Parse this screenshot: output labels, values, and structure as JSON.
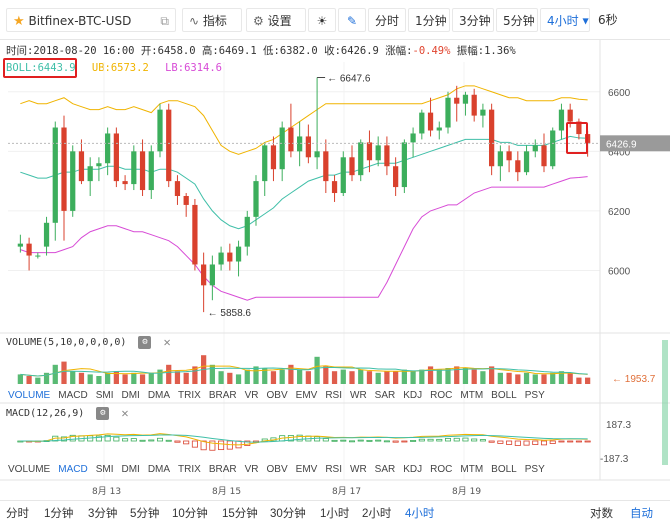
{
  "toolbar": {
    "pair": "Bitfinex-BTC-USD",
    "indicator_label": "指标",
    "settings_label": "设置",
    "intervals": [
      "分时",
      "1分钟",
      "3分钟",
      "5分钟"
    ],
    "active_interval": "4小时",
    "countdown": "6秒"
  },
  "info": {
    "time_label": "时间:",
    "time": "2018-08-20 16:00",
    "open_label": "开:",
    "open": "6458.0",
    "high_label": "高:",
    "high": "6469.1",
    "low_label": "低:",
    "low": "6382.0",
    "close_label": "收:",
    "close": "6426.9",
    "change_label": "涨幅:",
    "change": "-0.49%",
    "amp_label": "振幅:",
    "amp": "1.36%"
  },
  "boll": {
    "mid": "BOLL:6443.9",
    "ub": "UB:6573.2",
    "lb": "LB:6314.6"
  },
  "price_axis": [
    "6600",
    "6400",
    "6200",
    "6000"
  ],
  "last_price": "6426.9",
  "annotations": {
    "high_mark": "6647.6",
    "low_mark": "5858.6"
  },
  "volume": {
    "title": "VOLUME(5,10,0,0,0,0)",
    "last_value": "1953.7"
  },
  "macd": {
    "title": "MACD(12,26,9)",
    "top": "187.3",
    "bottom": "-187.3"
  },
  "tabs_row1": [
    "VOLUME",
    "MACD",
    "SMI",
    "DMI",
    "DMA",
    "TRIX",
    "BRAR",
    "VR",
    "OBV",
    "EMV",
    "RSI",
    "WR",
    "SAR",
    "KDJ",
    "ROC",
    "MTM",
    "BOLL",
    "PSY"
  ],
  "tabs_row1_active": "VOLUME",
  "tabs_row2": [
    "VOLUME",
    "MACD",
    "SMI",
    "DMI",
    "DMA",
    "TRIX",
    "BRAR",
    "VR",
    "OBV",
    "EMV",
    "RSI",
    "WR",
    "SAR",
    "KDJ",
    "ROC",
    "MTM",
    "BOLL",
    "PSY"
  ],
  "tabs_row2_active": "MACD",
  "date_ticks": [
    "8月 13",
    "8月 15",
    "8月 17",
    "8月 19"
  ],
  "bottom": {
    "intervals": [
      "分时",
      "1分钟",
      "3分钟",
      "5分钟",
      "10分钟",
      "15分钟",
      "30分钟",
      "1小时",
      "2小时",
      "4小时"
    ],
    "active": "4小时",
    "log_label": "对数",
    "auto_label": "自动"
  },
  "colors": {
    "up": "#3cae5c",
    "down": "#d9412d",
    "accent": "#1e6fd9",
    "boll_mid": "#3fbfa8",
    "boll_ub": "#f0b400",
    "boll_lb": "#d74bd6"
  },
  "chart_data": {
    "type": "candlestick",
    "price_axis": [
      6000,
      6200,
      6400,
      6600
    ],
    "ylim": [
      5800,
      6700
    ],
    "candles": [
      [
        6080,
        6120,
        6060,
        6090
      ],
      [
        6090,
        6110,
        6000,
        6050
      ],
      [
        6050,
        6060,
        6040,
        6050
      ],
      [
        6080,
        6180,
        6050,
        6160
      ],
      [
        6160,
        6500,
        6100,
        6480
      ],
      [
        6480,
        6520,
        6100,
        6200
      ],
      [
        6200,
        6420,
        6180,
        6400
      ],
      [
        6400,
        6440,
        6290,
        6300
      ],
      [
        6300,
        6380,
        6250,
        6350
      ],
      [
        6350,
        6380,
        6300,
        6360
      ],
      [
        6360,
        6480,
        6320,
        6460
      ],
      [
        6460,
        6480,
        6280,
        6300
      ],
      [
        6300,
        6320,
        6270,
        6290
      ],
      [
        6290,
        6420,
        6270,
        6400
      ],
      [
        6400,
        6440,
        6250,
        6270
      ],
      [
        6270,
        6420,
        6240,
        6400
      ],
      [
        6400,
        6560,
        6380,
        6540
      ],
      [
        6540,
        6560,
        6280,
        6300
      ],
      [
        6300,
        6320,
        6220,
        6250
      ],
      [
        6250,
        6260,
        6180,
        6220
      ],
      [
        6220,
        6240,
        6000,
        6020
      ],
      [
        6020,
        6060,
        5860,
        5950
      ],
      [
        5950,
        6050,
        5900,
        6020
      ],
      [
        6020,
        6080,
        6000,
        6060
      ],
      [
        6060,
        6090,
        6000,
        6030
      ],
      [
        6030,
        6100,
        5980,
        6080
      ],
      [
        6080,
        6200,
        6050,
        6180
      ],
      [
        6180,
        6320,
        6150,
        6300
      ],
      [
        6300,
        6430,
        6250,
        6420
      ],
      [
        6420,
        6450,
        6300,
        6340
      ],
      [
        6340,
        6500,
        6300,
        6480
      ],
      [
        6480,
        6560,
        6380,
        6400
      ],
      [
        6400,
        6500,
        6350,
        6450
      ],
      [
        6450,
        6490,
        6360,
        6380
      ],
      [
        6380,
        6648,
        6340,
        6400
      ],
      [
        6400,
        6440,
        6260,
        6300
      ],
      [
        6300,
        6320,
        6230,
        6260
      ],
      [
        6260,
        6400,
        6250,
        6380
      ],
      [
        6380,
        6420,
        6300,
        6320
      ],
      [
        6320,
        6440,
        6300,
        6430
      ],
      [
        6430,
        6470,
        6330,
        6370
      ],
      [
        6370,
        6450,
        6350,
        6420
      ],
      [
        6420,
        6450,
        6320,
        6350
      ],
      [
        6350,
        6380,
        6250,
        6280
      ],
      [
        6280,
        6440,
        6260,
        6430
      ],
      [
        6430,
        6480,
        6380,
        6460
      ],
      [
        6460,
        6540,
        6440,
        6530
      ],
      [
        6530,
        6580,
        6450,
        6470
      ],
      [
        6470,
        6500,
        6440,
        6480
      ],
      [
        6480,
        6600,
        6460,
        6580
      ],
      [
        6580,
        6620,
        6500,
        6560
      ],
      [
        6560,
        6600,
        6520,
        6590
      ],
      [
        6590,
        6610,
        6500,
        6520
      ],
      [
        6520,
        6560,
        6480,
        6540
      ],
      [
        6540,
        6560,
        6320,
        6350
      ],
      [
        6350,
        6420,
        6300,
        6400
      ],
      [
        6400,
        6420,
        6330,
        6370
      ],
      [
        6370,
        6400,
        6300,
        6330
      ],
      [
        6330,
        6420,
        6320,
        6400
      ],
      [
        6400,
        6440,
        6380,
        6420
      ],
      [
        6420,
        6460,
        6330,
        6350
      ],
      [
        6350,
        6480,
        6340,
        6470
      ],
      [
        6470,
        6560,
        6440,
        6540
      ],
      [
        6540,
        6560,
        6480,
        6500
      ],
      [
        6500,
        6510,
        6440,
        6458
      ],
      [
        6458,
        6469,
        6382,
        6427
      ]
    ],
    "boll_ub": [
      6560,
      6570,
      6560,
      6560,
      6570,
      6580,
      6560,
      6550,
      6540,
      6540,
      6550,
      6540,
      6540,
      6550,
      6540,
      6530,
      6560,
      6570,
      6570,
      6560,
      6550,
      6520,
      6470,
      6420,
      6400,
      6390,
      6400,
      6410,
      6430,
      6440,
      6460,
      6480,
      6500,
      6520,
      6540,
      6560,
      6560,
      6560,
      6560,
      6560,
      6560,
      6560,
      6560,
      6560,
      6560,
      6560,
      6560,
      6570,
      6580,
      6590,
      6610,
      6620,
      6620,
      6610,
      6600,
      6590,
      6580,
      6580,
      6570,
      6570,
      6570,
      6570,
      6580,
      6580,
      6575,
      6573
    ],
    "boll_mid": [
      6330,
      6320,
      6310,
      6310,
      6320,
      6330,
      6330,
      6340,
      6340,
      6340,
      6350,
      6350,
      6340,
      6340,
      6340,
      6330,
      6340,
      6340,
      6330,
      6310,
      6290,
      6240,
      6200,
      6170,
      6150,
      6140,
      6150,
      6170,
      6190,
      6210,
      6240,
      6260,
      6280,
      6300,
      6310,
      6320,
      6320,
      6330,
      6330,
      6340,
      6350,
      6360,
      6360,
      6360,
      6370,
      6380,
      6390,
      6400,
      6410,
      6420,
      6430,
      6440,
      6440,
      6440,
      6440,
      6430,
      6430,
      6420,
      6420,
      6420,
      6420,
      6430,
      6440,
      6450,
      6445,
      6444
    ],
    "boll_lb": [
      6070,
      6060,
      6060,
      6060,
      6060,
      6070,
      6080,
      6110,
      6130,
      6140,
      6150,
      6150,
      6140,
      6130,
      6130,
      6120,
      6110,
      6100,
      6080,
      6050,
      6020,
      5980,
      5950,
      5930,
      5920,
      5910,
      5900,
      5910,
      5910,
      5910,
      5910,
      5910,
      5910,
      5910,
      5910,
      5910,
      5910,
      5910,
      5910,
      5910,
      5910,
      5910,
      5960,
      6020,
      6080,
      6140,
      6180,
      6200,
      6210,
      6220,
      6220,
      6240,
      6260,
      6270,
      6280,
      6280,
      6280,
      6280,
      6280,
      6280,
      6280,
      6290,
      6300,
      6310,
      6312,
      6315
    ],
    "volumes": [
      30,
      25,
      20,
      35,
      60,
      70,
      40,
      35,
      30,
      25,
      35,
      40,
      30,
      35,
      30,
      35,
      45,
      60,
      40,
      35,
      55,
      90,
      60,
      40,
      35,
      30,
      45,
      55,
      50,
      40,
      45,
      60,
      45,
      40,
      85,
      55,
      40,
      45,
      40,
      45,
      40,
      35,
      40,
      40,
      45,
      40,
      45,
      55,
      45,
      50,
      55,
      50,
      45,
      40,
      55,
      35,
      35,
      30,
      35,
      30,
      30,
      35,
      40,
      35,
      20,
      20
    ]
  }
}
